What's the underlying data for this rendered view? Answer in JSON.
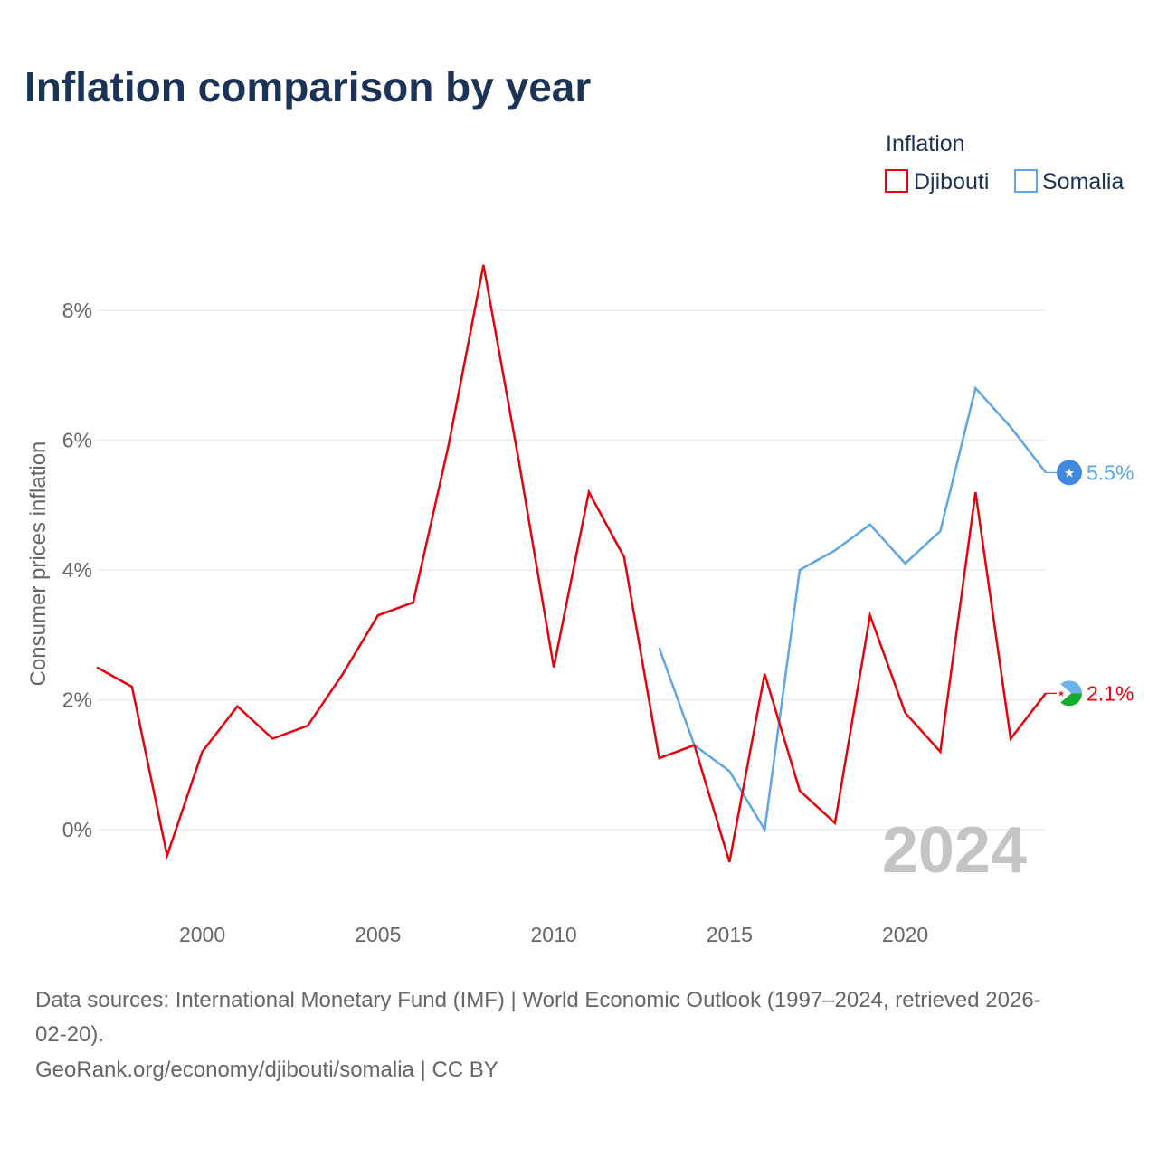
{
  "title": "Inflation comparison by year",
  "legend": {
    "title": "Inflation",
    "items": [
      {
        "label": "Djibouti",
        "color": "#e8000b"
      },
      {
        "label": "Somalia",
        "color": "#5da5e4"
      }
    ]
  },
  "watermark_year": "2024",
  "end_labels": {
    "djibouti": "2.1%",
    "somalia": "5.5%"
  },
  "source": {
    "line1": "Data sources: International Monetary Fund (IMF) | World Economic Outlook (1997–2024, retrieved 2026-",
    "line2": "02-20).",
    "line3": "GeoRank.org/economy/djibouti/somalia | CC BY"
  },
  "chart_data": {
    "type": "line",
    "title": "Inflation comparison by year",
    "xlabel": "",
    "ylabel": "Consumer prices inflation",
    "xlim": [
      1997,
      2024
    ],
    "ylim": [
      -1,
      9
    ],
    "x_ticks": [
      {
        "value": 2000,
        "label": "2000"
      },
      {
        "value": 2005,
        "label": "2005"
      },
      {
        "value": 2010,
        "label": "2010"
      },
      {
        "value": 2015,
        "label": "2015"
      },
      {
        "value": 2020,
        "label": "2020"
      }
    ],
    "y_ticks": [
      {
        "value": 0,
        "label": "0%"
      },
      {
        "value": 2,
        "label": "2%"
      },
      {
        "value": 4,
        "label": "4%"
      },
      {
        "value": 6,
        "label": "6%"
      },
      {
        "value": 8,
        "label": "8%"
      }
    ],
    "grid": true,
    "legend_position": "top-right",
    "series": [
      {
        "name": "Djibouti",
        "key": "djibouti",
        "color": "#e8000b",
        "x": [
          1997,
          1998,
          1999,
          2000,
          2001,
          2002,
          2003,
          2004,
          2005,
          2006,
          2007,
          2008,
          2009,
          2010,
          2011,
          2012,
          2013,
          2014,
          2015,
          2016,
          2017,
          2018,
          2019,
          2020,
          2021,
          2022,
          2023,
          2024
        ],
        "values": [
          2.5,
          2.2,
          -0.4,
          1.2,
          1.9,
          1.4,
          1.6,
          2.4,
          3.3,
          3.5,
          5.9,
          8.7,
          5.7,
          2.5,
          5.2,
          4.2,
          1.1,
          1.3,
          -0.5,
          2.4,
          0.6,
          0.1,
          3.3,
          1.8,
          1.2,
          5.2,
          1.4,
          2.1
        ]
      },
      {
        "name": "Somalia",
        "key": "somalia",
        "color": "#5da5e4",
        "x": [
          2013,
          2014,
          2015,
          2016,
          2017,
          2018,
          2019,
          2020,
          2021,
          2022,
          2023,
          2024
        ],
        "values": [
          2.8,
          1.3,
          0.9,
          0.0,
          4.0,
          4.3,
          4.7,
          4.1,
          4.6,
          6.8,
          6.2,
          5.5
        ]
      }
    ]
  }
}
